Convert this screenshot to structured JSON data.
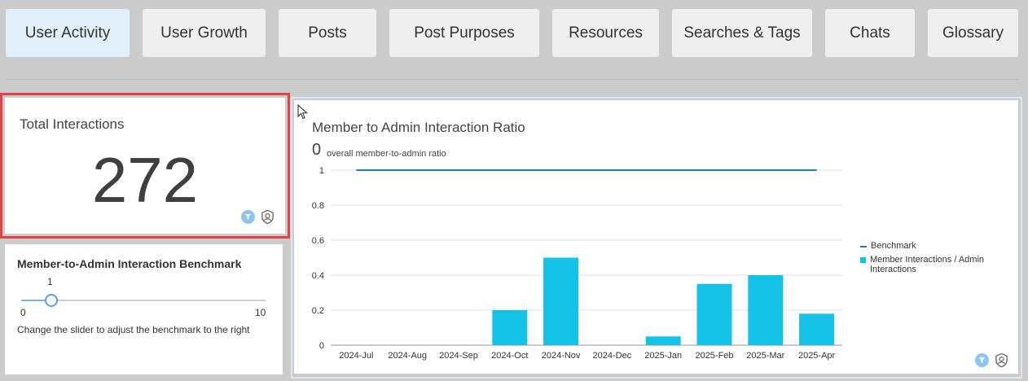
{
  "tabs": [
    {
      "label": "User Activity",
      "active": true
    },
    {
      "label": "User Growth",
      "active": false
    },
    {
      "label": "Posts",
      "active": false
    },
    {
      "label": "Post Purposes",
      "active": false
    },
    {
      "label": "Resources",
      "active": false
    },
    {
      "label": "Searches & Tags",
      "active": false
    },
    {
      "label": "Chats",
      "active": false
    },
    {
      "label": "Glossary",
      "active": false
    }
  ],
  "kpi": {
    "title": "Total Interactions",
    "value": "272",
    "icons": [
      "filter-icon",
      "shield-user-icon"
    ]
  },
  "benchmark": {
    "title": "Member-to-Admin Interaction Benchmark",
    "value": "1",
    "min": "0",
    "max": "10",
    "help": "Change the slider to adjust the benchmark to the right"
  },
  "chart_panel": {
    "icons": [
      "filter-icon",
      "shield-user-icon"
    ]
  },
  "chart_data": {
    "type": "bar",
    "title": "Member to Admin Interaction Ratio",
    "subtitle_value": "0",
    "subtitle_text": "overall member-to-admin ratio",
    "categories": [
      "2024-Jul",
      "2024-Aug",
      "2024-Sep",
      "2024-Oct",
      "2024-Nov",
      "2024-Dec",
      "2025-Jan",
      "2025-Feb",
      "2025-Mar",
      "2025-Apr"
    ],
    "series": [
      {
        "name": "Member Interactions / Admin Interactions",
        "type": "bar",
        "color": "#15c2e7",
        "values": [
          0,
          0,
          0,
          0.2,
          0.5,
          0,
          0.05,
          0.35,
          0.4,
          0.18
        ]
      },
      {
        "name": "Benchmark",
        "type": "line",
        "color": "#1f7fb4",
        "values": [
          1,
          1,
          1,
          1,
          1,
          1,
          1,
          1,
          1,
          1
        ]
      }
    ],
    "yticks": [
      "0",
      "0.2",
      "0.4",
      "0.6",
      "0.8",
      "1"
    ],
    "ylim": [
      0,
      1
    ],
    "grid": true,
    "legend_position": "right"
  },
  "colors": {
    "active_tab": "#e1effb",
    "bar": "#15c2e7",
    "benchmark_line": "#1f7fb4",
    "highlight_border": "#e04444"
  }
}
